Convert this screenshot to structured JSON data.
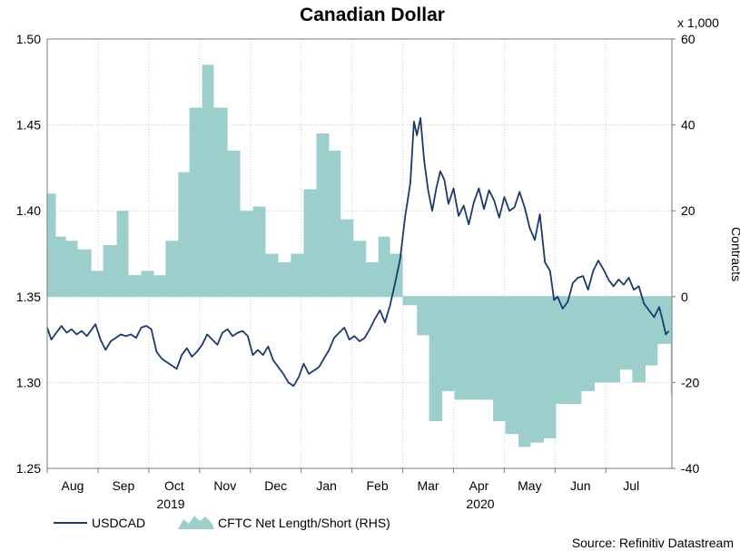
{
  "chart_data": {
    "type": "line",
    "title": "Canadian Dollar",
    "left_axis": {
      "ylim": [
        1.25,
        1.5
      ],
      "ticks": [
        "1.25",
        "1.30",
        "1.35",
        "1.40",
        "1.45",
        "1.50"
      ]
    },
    "right_axis": {
      "label": "Contracts",
      "unit_label": "x 1,000",
      "ylim": [
        -40,
        60
      ],
      "ticks": [
        "-40",
        "-20",
        "0",
        "20",
        "40",
        "60"
      ]
    },
    "x_months": [
      "Aug",
      "Sep",
      "Oct",
      "Nov",
      "Dec",
      "Jan",
      "Feb",
      "Mar",
      "Apr",
      "May",
      "Jun",
      "Jul"
    ],
    "x_years": [
      "2019",
      "2020"
    ],
    "legend": {
      "line": "USDCAD",
      "area": "CFTC Net Length/Short (RHS)"
    },
    "source": "Source: Refinitiv Datastream",
    "colors": {
      "line": "#1b3a6b",
      "area": "#9ccfcc",
      "grid": "#c8c8c8"
    },
    "x_range": [
      0,
      12.3
    ],
    "series": [
      {
        "name": "USDCAD",
        "axis": "left",
        "points": [
          [
            0.0,
            1.332
          ],
          [
            0.08,
            1.325
          ],
          [
            0.18,
            1.329
          ],
          [
            0.28,
            1.333
          ],
          [
            0.38,
            1.329
          ],
          [
            0.48,
            1.331
          ],
          [
            0.58,
            1.328
          ],
          [
            0.68,
            1.33
          ],
          [
            0.78,
            1.327
          ],
          [
            0.88,
            1.331
          ],
          [
            0.95,
            1.334
          ],
          [
            1.05,
            1.325
          ],
          [
            1.15,
            1.319
          ],
          [
            1.25,
            1.324
          ],
          [
            1.35,
            1.326
          ],
          [
            1.45,
            1.328
          ],
          [
            1.55,
            1.327
          ],
          [
            1.65,
            1.328
          ],
          [
            1.75,
            1.326
          ],
          [
            1.85,
            1.332
          ],
          [
            1.95,
            1.333
          ],
          [
            2.05,
            1.331
          ],
          [
            2.15,
            1.318
          ],
          [
            2.25,
            1.314
          ],
          [
            2.35,
            1.312
          ],
          [
            2.45,
            1.31
          ],
          [
            2.55,
            1.308
          ],
          [
            2.65,
            1.316
          ],
          [
            2.75,
            1.32
          ],
          [
            2.85,
            1.315
          ],
          [
            2.95,
            1.318
          ],
          [
            3.05,
            1.322
          ],
          [
            3.15,
            1.328
          ],
          [
            3.25,
            1.325
          ],
          [
            3.35,
            1.322
          ],
          [
            3.45,
            1.329
          ],
          [
            3.55,
            1.331
          ],
          [
            3.65,
            1.327
          ],
          [
            3.75,
            1.329
          ],
          [
            3.85,
            1.33
          ],
          [
            3.95,
            1.327
          ],
          [
            4.05,
            1.316
          ],
          [
            4.15,
            1.319
          ],
          [
            4.25,
            1.316
          ],
          [
            4.35,
            1.321
          ],
          [
            4.45,
            1.313
          ],
          [
            4.55,
            1.309
          ],
          [
            4.65,
            1.305
          ],
          [
            4.75,
            1.3
          ],
          [
            4.85,
            1.298
          ],
          [
            4.95,
            1.303
          ],
          [
            5.05,
            1.311
          ],
          [
            5.15,
            1.305
          ],
          [
            5.25,
            1.307
          ],
          [
            5.35,
            1.309
          ],
          [
            5.45,
            1.314
          ],
          [
            5.55,
            1.319
          ],
          [
            5.65,
            1.326
          ],
          [
            5.75,
            1.329
          ],
          [
            5.85,
            1.332
          ],
          [
            5.95,
            1.325
          ],
          [
            6.05,
            1.327
          ],
          [
            6.15,
            1.324
          ],
          [
            6.25,
            1.326
          ],
          [
            6.35,
            1.331
          ],
          [
            6.45,
            1.337
          ],
          [
            6.55,
            1.342
          ],
          [
            6.65,
            1.335
          ],
          [
            6.75,
            1.345
          ],
          [
            6.85,
            1.358
          ],
          [
            6.95,
            1.372
          ],
          [
            7.05,
            1.397
          ],
          [
            7.15,
            1.416
          ],
          [
            7.22,
            1.452
          ],
          [
            7.28,
            1.444
          ],
          [
            7.35,
            1.454
          ],
          [
            7.42,
            1.43
          ],
          [
            7.5,
            1.412
          ],
          [
            7.58,
            1.4
          ],
          [
            7.66,
            1.413
          ],
          [
            7.74,
            1.423
          ],
          [
            7.82,
            1.418
          ],
          [
            7.9,
            1.404
          ],
          [
            8.0,
            1.413
          ],
          [
            8.1,
            1.397
          ],
          [
            8.2,
            1.403
          ],
          [
            8.3,
            1.392
          ],
          [
            8.4,
            1.405
          ],
          [
            8.5,
            1.413
          ],
          [
            8.6,
            1.401
          ],
          [
            8.7,
            1.412
          ],
          [
            8.8,
            1.406
          ],
          [
            8.9,
            1.396
          ],
          [
            9.0,
            1.408
          ],
          [
            9.1,
            1.4
          ],
          [
            9.2,
            1.402
          ],
          [
            9.3,
            1.411
          ],
          [
            9.4,
            1.402
          ],
          [
            9.5,
            1.39
          ],
          [
            9.6,
            1.383
          ],
          [
            9.7,
            1.398
          ],
          [
            9.8,
            1.37
          ],
          [
            9.9,
            1.365
          ],
          [
            9.98,
            1.348
          ],
          [
            10.05,
            1.35
          ],
          [
            10.15,
            1.343
          ],
          [
            10.25,
            1.347
          ],
          [
            10.35,
            1.358
          ],
          [
            10.45,
            1.361
          ],
          [
            10.55,
            1.362
          ],
          [
            10.65,
            1.354
          ],
          [
            10.75,
            1.365
          ],
          [
            10.85,
            1.371
          ],
          [
            10.95,
            1.366
          ],
          [
            11.05,
            1.36
          ],
          [
            11.15,
            1.356
          ],
          [
            11.25,
            1.36
          ],
          [
            11.35,
            1.357
          ],
          [
            11.45,
            1.361
          ],
          [
            11.55,
            1.354
          ],
          [
            11.65,
            1.356
          ],
          [
            11.75,
            1.346
          ],
          [
            11.85,
            1.342
          ],
          [
            11.95,
            1.338
          ],
          [
            12.05,
            1.344
          ],
          [
            12.12,
            1.336
          ],
          [
            12.18,
            1.328
          ],
          [
            12.24,
            1.33
          ]
        ]
      },
      {
        "name": "CFTC Net Length/Short (RHS)",
        "axis": "right",
        "points": [
          [
            0.0,
            24
          ],
          [
            0.17,
            14
          ],
          [
            0.37,
            13
          ],
          [
            0.6,
            11
          ],
          [
            0.87,
            6
          ],
          [
            1.1,
            12
          ],
          [
            1.37,
            20
          ],
          [
            1.6,
            5
          ],
          [
            1.85,
            6
          ],
          [
            2.1,
            5
          ],
          [
            2.33,
            13
          ],
          [
            2.58,
            29
          ],
          [
            2.8,
            44
          ],
          [
            3.05,
            54
          ],
          [
            3.28,
            44
          ],
          [
            3.55,
            34
          ],
          [
            3.8,
            20
          ],
          [
            4.05,
            21
          ],
          [
            4.3,
            10
          ],
          [
            4.55,
            8
          ],
          [
            4.8,
            10
          ],
          [
            5.05,
            25
          ],
          [
            5.3,
            38
          ],
          [
            5.55,
            34
          ],
          [
            5.78,
            18
          ],
          [
            6.03,
            13
          ],
          [
            6.28,
            8
          ],
          [
            6.52,
            14
          ],
          [
            6.75,
            10
          ],
          [
            7.0,
            -2
          ],
          [
            7.28,
            -9
          ],
          [
            7.52,
            -29
          ],
          [
            7.78,
            -22
          ],
          [
            8.02,
            -24
          ],
          [
            8.28,
            -24
          ],
          [
            8.52,
            -24
          ],
          [
            8.78,
            -29
          ],
          [
            9.02,
            -32
          ],
          [
            9.28,
            -35
          ],
          [
            9.52,
            -34
          ],
          [
            9.78,
            -33
          ],
          [
            10.02,
            -25
          ],
          [
            10.28,
            -25
          ],
          [
            10.52,
            -22
          ],
          [
            10.78,
            -20
          ],
          [
            11.02,
            -20
          ],
          [
            11.28,
            -17
          ],
          [
            11.52,
            -20
          ],
          [
            11.78,
            -16
          ],
          [
            12.02,
            -11
          ],
          [
            12.28,
            -23
          ]
        ]
      }
    ]
  }
}
